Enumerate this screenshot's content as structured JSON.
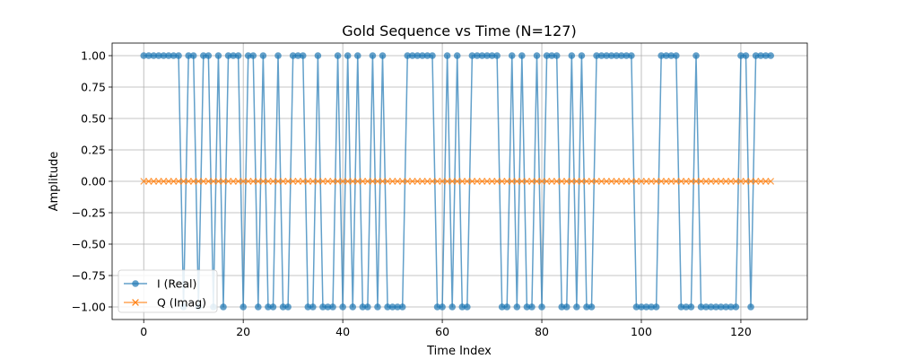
{
  "chart_data": {
    "type": "line",
    "title": "Gold Sequence vs Time (N=127)",
    "xlabel": "Time Index",
    "ylabel": "Amplitude",
    "xlim": [
      -6.35,
      133.35
    ],
    "ylim": [
      -1.1,
      1.1
    ],
    "xticks": [
      0,
      20,
      40,
      60,
      80,
      100,
      120
    ],
    "yticks": [
      -1.0,
      -0.75,
      -0.5,
      -0.25,
      0.0,
      0.25,
      0.5,
      0.75,
      1.0
    ],
    "ytick_labels": [
      "−1.00",
      "−0.75",
      "−0.50",
      "−0.25",
      "0.00",
      "0.25",
      "0.50",
      "0.75",
      "1.00"
    ],
    "grid": true,
    "legend_position": "lower-left",
    "series": [
      {
        "name": "I (Real)",
        "color": "#1f77b4",
        "marker": "circle",
        "values": [
          1,
          1,
          1,
          1,
          1,
          1,
          1,
          1,
          -1,
          1,
          1,
          -1,
          1,
          1,
          -1,
          1,
          -1,
          1,
          1,
          1,
          -1,
          1,
          1,
          -1,
          1,
          -1,
          -1,
          1,
          -1,
          -1,
          1,
          1,
          1,
          -1,
          -1,
          1,
          -1,
          -1,
          -1,
          1,
          -1,
          1,
          -1,
          1,
          -1,
          -1,
          1,
          -1,
          1,
          -1,
          -1,
          -1,
          -1,
          1,
          1,
          1,
          1,
          1,
          1,
          -1,
          -1,
          1,
          -1,
          1,
          -1,
          -1,
          1,
          1,
          1,
          1,
          1,
          1,
          -1,
          -1,
          1,
          -1,
          1,
          -1,
          -1,
          1,
          -1,
          1,
          1,
          1,
          -1,
          -1,
          1,
          -1,
          1,
          -1,
          -1,
          1,
          1,
          1,
          1,
          1,
          1,
          1,
          1,
          -1,
          -1,
          -1,
          -1,
          -1,
          1,
          1,
          1,
          1,
          -1,
          -1,
          -1,
          1,
          -1,
          -1,
          -1,
          -1,
          -1,
          -1,
          -1,
          -1,
          1,
          1,
          -1,
          1,
          1,
          1,
          1
        ]
      },
      {
        "name": "Q (Imag)",
        "color": "#ff7f0e",
        "marker": "x",
        "values": [
          0,
          0,
          0,
          0,
          0,
          0,
          0,
          0,
          0,
          0,
          0,
          0,
          0,
          0,
          0,
          0,
          0,
          0,
          0,
          0,
          0,
          0,
          0,
          0,
          0,
          0,
          0,
          0,
          0,
          0,
          0,
          0,
          0,
          0,
          0,
          0,
          0,
          0,
          0,
          0,
          0,
          0,
          0,
          0,
          0,
          0,
          0,
          0,
          0,
          0,
          0,
          0,
          0,
          0,
          0,
          0,
          0,
          0,
          0,
          0,
          0,
          0,
          0,
          0,
          0,
          0,
          0,
          0,
          0,
          0,
          0,
          0,
          0,
          0,
          0,
          0,
          0,
          0,
          0,
          0,
          0,
          0,
          0,
          0,
          0,
          0,
          0,
          0,
          0,
          0,
          0,
          0,
          0,
          0,
          0,
          0,
          0,
          0,
          0,
          0,
          0,
          0,
          0,
          0,
          0,
          0,
          0,
          0,
          0,
          0,
          0,
          0,
          0,
          0,
          0,
          0,
          0,
          0,
          0,
          0,
          0,
          0,
          0,
          0,
          0,
          0,
          0
        ]
      }
    ]
  }
}
